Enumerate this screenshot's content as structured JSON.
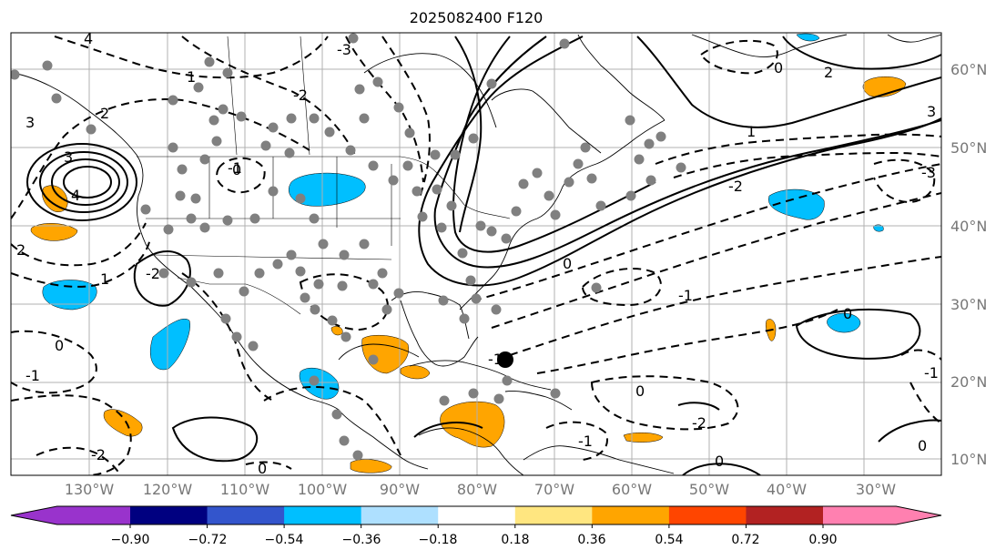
{
  "title": "2025082400 F120",
  "lat_labels": [
    "60°N",
    "50°N",
    "40°N",
    "30°N",
    "20°N",
    "10°N"
  ],
  "lon_labels": [
    "130°W",
    "120°W",
    "110°W",
    "100°W",
    "90°W",
    "80°W",
    "70°W",
    "60°W",
    "50°W",
    "40°W",
    "30°W"
  ],
  "colorbar": {
    "ticks": [
      "−0.90",
      "−0.72",
      "−0.54",
      "−0.36",
      "−0.18",
      "0.18",
      "0.36",
      "0.54",
      "0.72",
      "0.90"
    ],
    "colors": [
      "#9933cc",
      "#000080",
      "#3355cc",
      "#00bfff",
      "#aee0ff",
      "#ffffff",
      "#ffe680",
      "#ffa500",
      "#ff4500",
      "#b22222",
      "#ff80b0"
    ]
  },
  "contour_labels": [
    "3",
    "2",
    "4",
    "1",
    "-3",
    "-2",
    "-1",
    "0",
    "3",
    "2",
    "4",
    "-2",
    "-1",
    "0",
    "1",
    "-3",
    "-2",
    "-1",
    "0",
    "2",
    "3",
    "0",
    "0",
    "-2",
    "-1",
    "0",
    "0",
    "-1",
    "-2",
    "-1",
    "0",
    "1",
    "0"
  ],
  "storm_marker": {
    "lon": -76,
    "lat": 23
  }
}
